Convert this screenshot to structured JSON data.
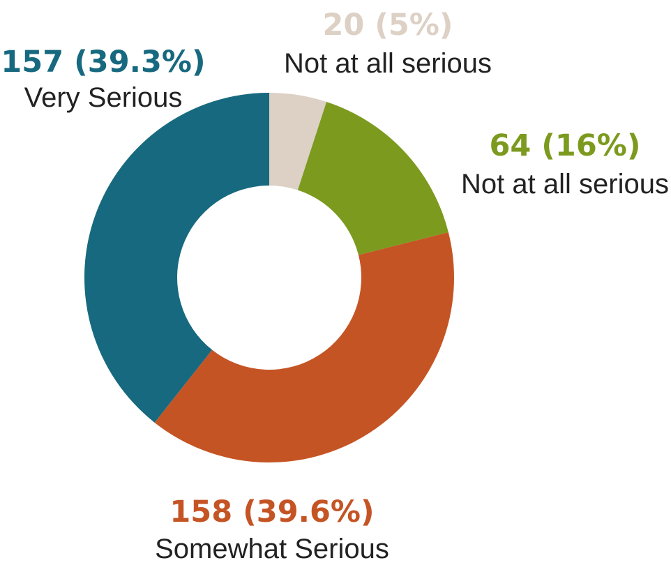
{
  "chart_data": {
    "type": "pie",
    "title": "",
    "slices": [
      {
        "name": "Not at all serious",
        "value": 20,
        "label": "20 (5%)",
        "color": "#DDD0C4"
      },
      {
        "name": "Not at all serious",
        "value": 64,
        "label": "64 (16%)",
        "color": "#7C9A1E"
      },
      {
        "name": "Somewhat Serious",
        "value": 158,
        "label": "158 (39.6%)",
        "color": "#C55424"
      },
      {
        "name": "Very Serious",
        "value": 157,
        "label": "157 (39.3%)",
        "color": "#17697F"
      }
    ],
    "donut": true
  }
}
